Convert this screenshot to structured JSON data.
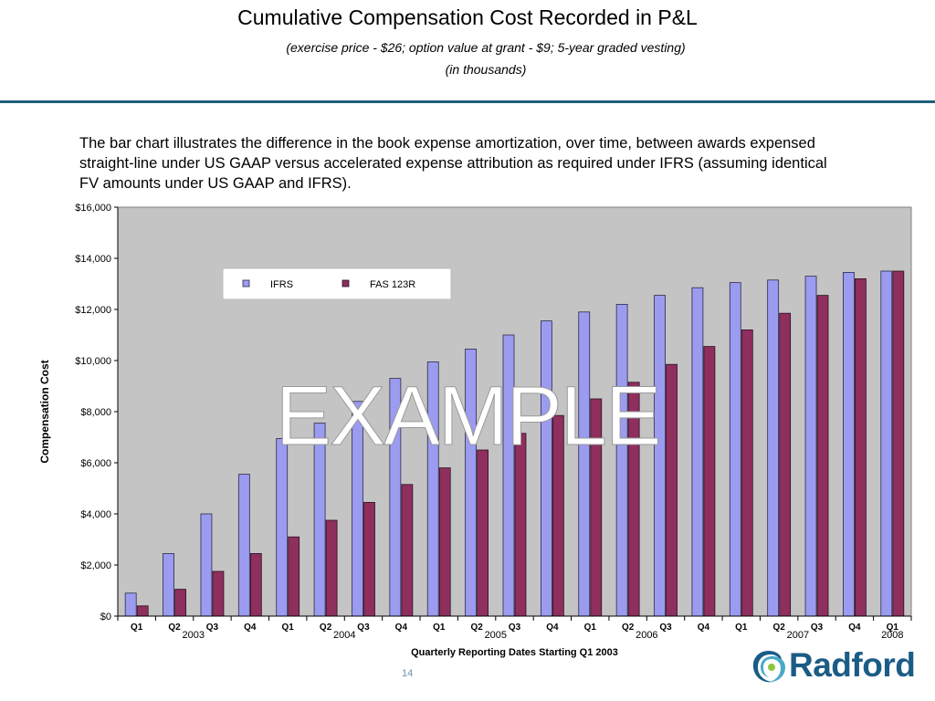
{
  "header": {
    "title": "Cumulative Compensation Cost Recorded in P&L",
    "subtitle": "(exercise price - $26; option value at grant - $9; 5-year graded vesting)",
    "units": "(in thousands)"
  },
  "description": "The bar chart illustrates the difference in the book expense amortization, over time, between awards expensed straight-line under US GAAP versus accelerated expense attribution as required under IFRS (assuming identical FV amounts under US GAAP and IFRS).",
  "watermark": "EXAMPLE",
  "page_number": "14",
  "logo": {
    "text": "Radford",
    "icon": "radford-swirl-icon",
    "color": "#1b5c86"
  },
  "colors": {
    "ifrs": "#9b9bf0",
    "fas": "#8e2f5e",
    "plot_bg": "#c4c4c4",
    "rule": "#1f5f78"
  },
  "chart_data": {
    "type": "bar",
    "categories": [
      "Q1",
      "Q2",
      "Q3",
      "Q4",
      "Q1",
      "Q2",
      "Q3",
      "Q4",
      "Q1",
      "Q2",
      "Q3",
      "Q4",
      "Q1",
      "Q2",
      "Q3",
      "Q4",
      "Q1",
      "Q2",
      "Q3",
      "Q4",
      "Q1"
    ],
    "years": [
      {
        "label": "2003",
        "start": 0,
        "end": 3
      },
      {
        "label": "2004",
        "start": 4,
        "end": 7
      },
      {
        "label": "2005",
        "start": 8,
        "end": 11
      },
      {
        "label": "2006",
        "start": 12,
        "end": 15
      },
      {
        "label": "2007",
        "start": 16,
        "end": 19
      },
      {
        "label": "2008",
        "start": 20,
        "end": 20
      }
    ],
    "series": [
      {
        "name": "IFRS",
        "values": [
          900,
          2450,
          4000,
          5550,
          6950,
          7550,
          8400,
          9300,
          9950,
          10450,
          11000,
          11550,
          11900,
          12200,
          12550,
          12850,
          13050,
          13150,
          13300,
          13450,
          13500
        ]
      },
      {
        "name": "FAS 123R",
        "values": [
          400,
          1050,
          1750,
          2450,
          3100,
          3750,
          4450,
          5150,
          5800,
          6500,
          7150,
          7850,
          8500,
          9150,
          9850,
          10550,
          11200,
          11850,
          12550,
          13200,
          13500
        ]
      }
    ],
    "title": "",
    "xlabel": "Quarterly Reporting Dates Starting Q1 2003",
    "ylabel": "Compensation Cost",
    "ylim": [
      0,
      16000
    ],
    "ytick_step": 2000,
    "ytick_labels": [
      "$0",
      "$2,000",
      "$4,000",
      "$6,000",
      "$8,000",
      "$10,000",
      "$12,000",
      "$14,000",
      "$16,000"
    ],
    "legend": "top-left",
    "grid": false
  }
}
